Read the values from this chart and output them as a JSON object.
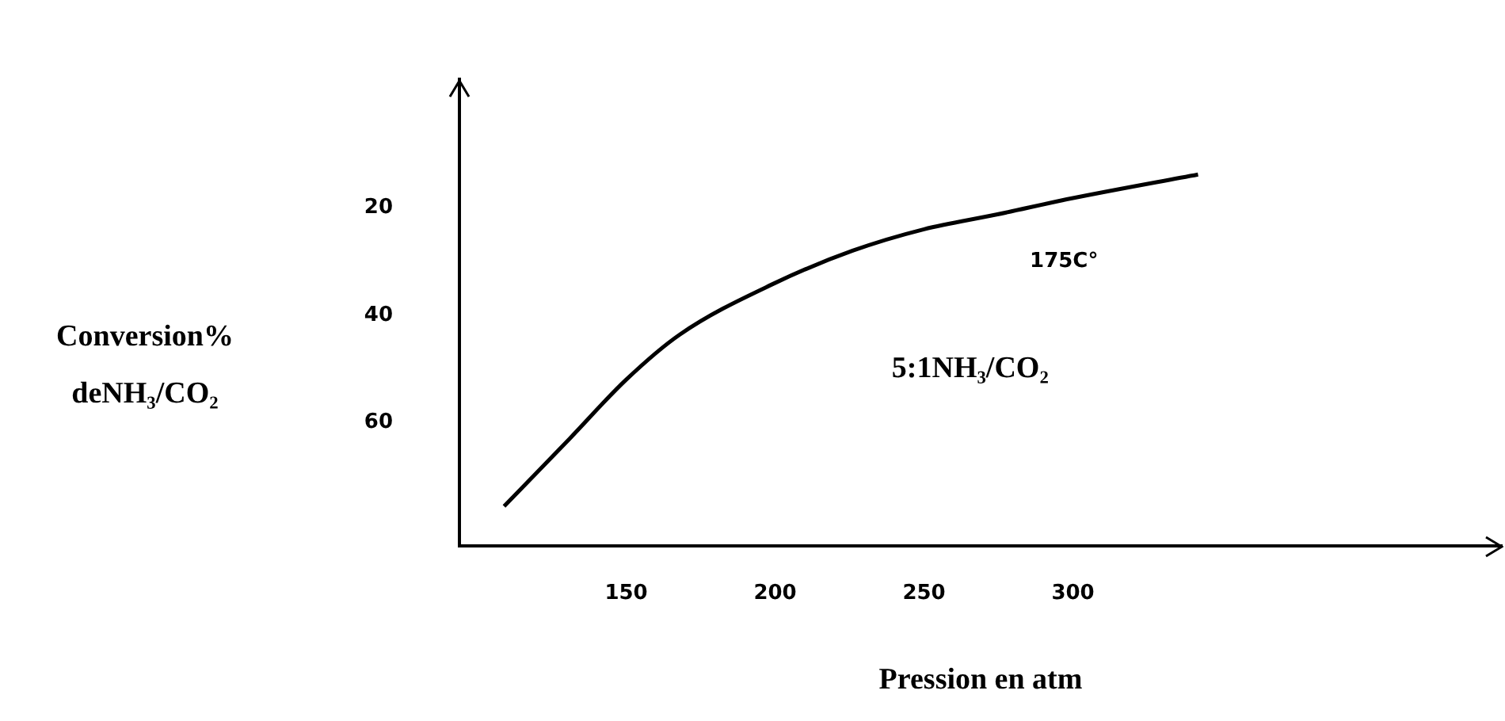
{
  "chart_data": {
    "type": "line",
    "xlabel": "Pression en atm",
    "ylabel": "Conversion% deNH₃/CO₂",
    "x": [
      109,
      131,
      150,
      168,
      200,
      226,
      250,
      274,
      300,
      342
    ],
    "series": [
      {
        "color": "#000000",
        "values": [
          75.6,
          63,
          52,
          43.6,
          34,
          28,
          24,
          21.3,
          18.2,
          13.8
        ]
      }
    ],
    "xlim": [
      94,
      444
    ],
    "xticks": [
      150,
      200,
      250,
      300
    ],
    "ylim": [
      83,
      -4
    ],
    "yticks": [
      20,
      40,
      60
    ],
    "annotations": [
      "175C°",
      "5:1NH₃/CO₂"
    ],
    "grid": false,
    "legend": false,
    "marker": "none",
    "line_style": "solid"
  }
}
